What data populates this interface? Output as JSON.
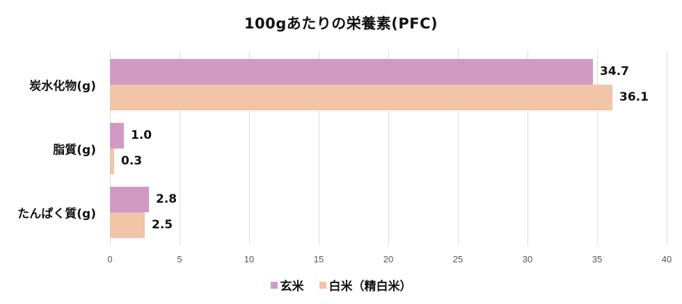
{
  "chart_data": {
    "type": "bar",
    "orientation": "horizontal",
    "title": "100gあたりの栄養素(PFC)",
    "categories": [
      "炭水化物(g)",
      "脂質(g)",
      "たんぱく質(g)"
    ],
    "series": [
      {
        "name": "玄米",
        "color": "#d19ac4",
        "values": [
          34.7,
          1.0,
          2.8
        ],
        "labels": [
          "34.7",
          "1.0",
          "2.8"
        ]
      },
      {
        "name": "白米（精白米）",
        "color": "#f2c4a8",
        "values": [
          36.1,
          0.3,
          2.5
        ],
        "labels": [
          "36.1",
          "0.3",
          "2.5"
        ]
      }
    ],
    "xlabel": "",
    "ylabel": "",
    "xlim": [
      0,
      40
    ],
    "xticks": [
      "0",
      "5",
      "10",
      "15",
      "20",
      "25",
      "30",
      "35",
      "40"
    ],
    "grid": true,
    "legend_position": "bottom"
  }
}
